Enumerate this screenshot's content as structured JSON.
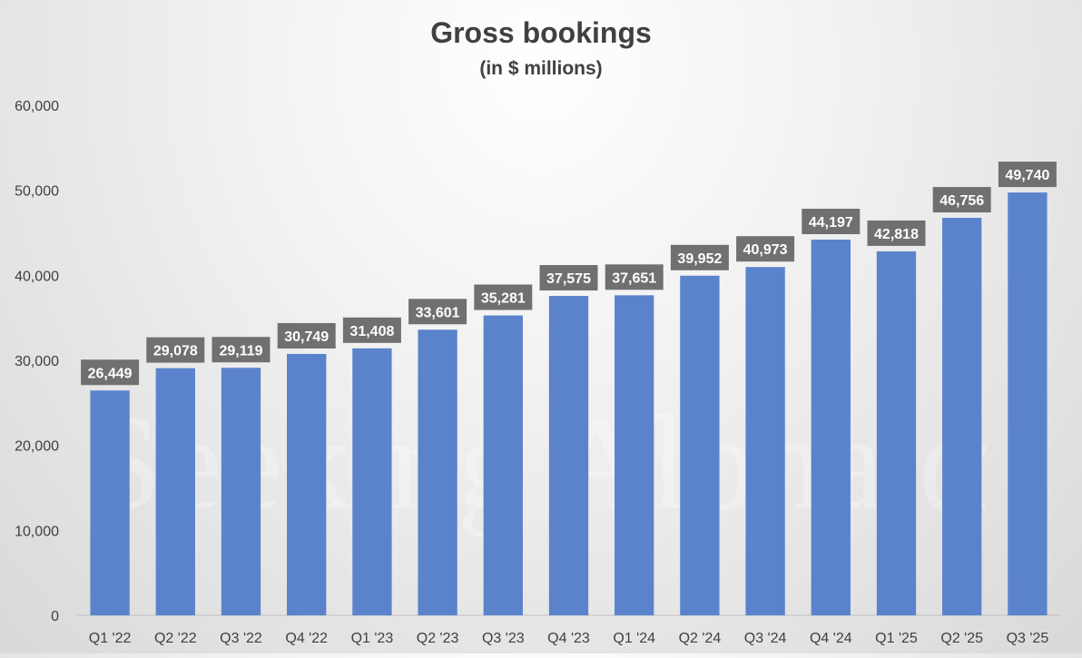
{
  "chart_data": {
    "type": "bar",
    "title": "Gross bookings",
    "subtitle": "(in $ millions)",
    "xlabel": "",
    "ylabel": "",
    "categories": [
      "Q1 '22",
      "Q2 '22",
      "Q3 '22",
      "Q4 '22",
      "Q1 '23",
      "Q2 '23",
      "Q3 '23",
      "Q4 '23",
      "Q1 '24",
      "Q2 '24",
      "Q3 '24",
      "Q4 '24",
      "Q1 '25",
      "Q2 '25",
      "Q3 '25"
    ],
    "values": [
      26449,
      29078,
      29119,
      30749,
      31408,
      33601,
      35281,
      37575,
      37651,
      39952,
      40973,
      44197,
      42818,
      46756,
      49740
    ],
    "data_labels": [
      "26,449",
      "29,078",
      "29,119",
      "30,749",
      "31,408",
      "33,601",
      "35,281",
      "37,575",
      "37,651",
      "39,952",
      "40,973",
      "44,197",
      "42,818",
      "46,756",
      "49,740"
    ],
    "ylim": [
      0,
      60000
    ],
    "yticks": [
      0,
      10000,
      20000,
      30000,
      40000,
      50000,
      60000
    ],
    "ytick_labels": [
      "0",
      "10,000",
      "20,000",
      "30,000",
      "40,000",
      "50,000",
      "60,000"
    ],
    "grid": false,
    "legend": "none",
    "bar_color": "#5b83cc",
    "label_box_color": "#707070",
    "watermark": "Seeking Alpha α"
  }
}
